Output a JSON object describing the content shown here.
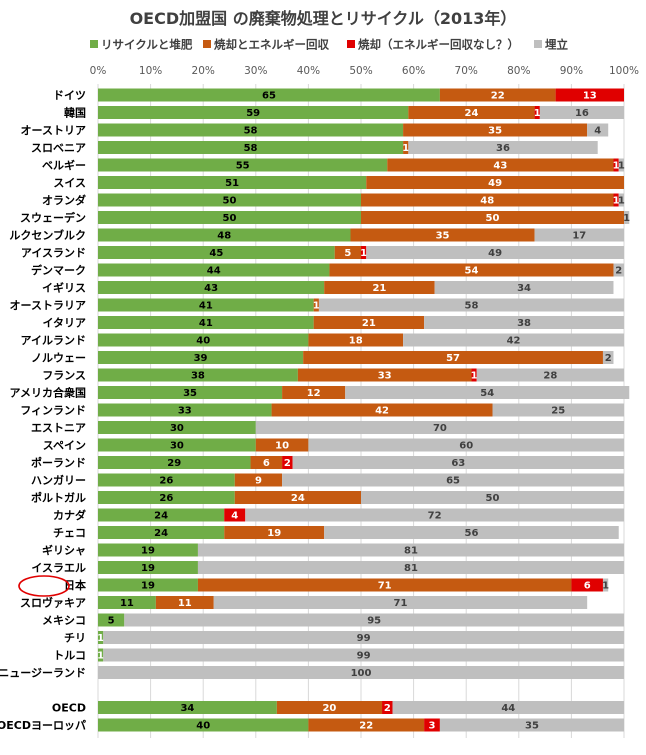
{
  "chart_data": {
    "type": "bar",
    "orientation": "horizontal",
    "stacked": true,
    "title": "OECD加盟国 の廃棄物処理とリサイクル（2013年）",
    "xlabel": "",
    "ylabel": "",
    "xlim": [
      0,
      100
    ],
    "x_ticks": [
      "0%",
      "10%",
      "20%",
      "30%",
      "40%",
      "50%",
      "60%",
      "70%",
      "80%",
      "90%",
      "100%"
    ],
    "grid": true,
    "legend_position": "top",
    "highlighted_category": "日本",
    "categories": [
      "ドイツ",
      "韓国",
      "オーストリア",
      "スロベニア",
      "ベルギー",
      "スイス",
      "オランダ",
      "スウェーデン",
      "ルクセンブルク",
      "アイスランド",
      "デンマーク",
      "イギリス",
      "オーストラリア",
      "イタリア",
      "アイルランド",
      "ノルウェー",
      "フランス",
      "アメリカ合衆国",
      "フィンランド",
      "エストニア",
      "スペイン",
      "ポーランド",
      "ハンガリー",
      "ポルトガル",
      "カナダ",
      "チェコ",
      "ギリシャ",
      "イスラエル",
      "日本",
      "スロヴァキア",
      "メキシコ",
      "チリ",
      "トルコ",
      "ニュージーランド",
      "OECD",
      "OECDヨーロッパ"
    ],
    "series": [
      {
        "name": "リサイクルと堆肥",
        "color": "#70ad47",
        "values": [
          65,
          59,
          58,
          58,
          55,
          51,
          50,
          50,
          48,
          45,
          44,
          43,
          41,
          41,
          40,
          39,
          38,
          35,
          33,
          30,
          30,
          29,
          26,
          26,
          24,
          24,
          19,
          19,
          19,
          11,
          5,
          1,
          1,
          0,
          34,
          40
        ]
      },
      {
        "name": "焼却とエネルギー回収",
        "color": "#c55a11",
        "values": [
          22,
          24,
          35,
          1,
          43,
          49,
          48,
          50,
          35,
          5,
          54,
          21,
          1,
          21,
          18,
          57,
          33,
          12,
          42,
          0,
          10,
          6,
          9,
          24,
          0,
          19,
          0,
          0,
          71,
          11,
          0,
          0,
          0,
          0,
          20,
          22
        ]
      },
      {
        "name": "焼却（エネルギー回収なし？）",
        "color": "#e00000",
        "values": [
          13,
          1,
          0,
          0,
          1,
          0,
          1,
          0,
          0,
          1,
          0,
          0,
          0,
          0,
          0,
          0,
          1,
          0,
          0,
          0,
          0,
          2,
          0,
          0,
          4,
          0,
          0,
          0,
          6,
          0,
          0,
          0,
          0,
          0,
          2,
          3
        ]
      },
      {
        "name": "埋立",
        "color": "#bfbfbf",
        "values": [
          0,
          16,
          4,
          36,
          1,
          0,
          1,
          1,
          17,
          49,
          2,
          34,
          58,
          38,
          42,
          2,
          28,
          54,
          25,
          70,
          60,
          63,
          65,
          50,
          72,
          56,
          81,
          81,
          1,
          71,
          95,
          99,
          99,
          100,
          44,
          35
        ]
      }
    ]
  }
}
